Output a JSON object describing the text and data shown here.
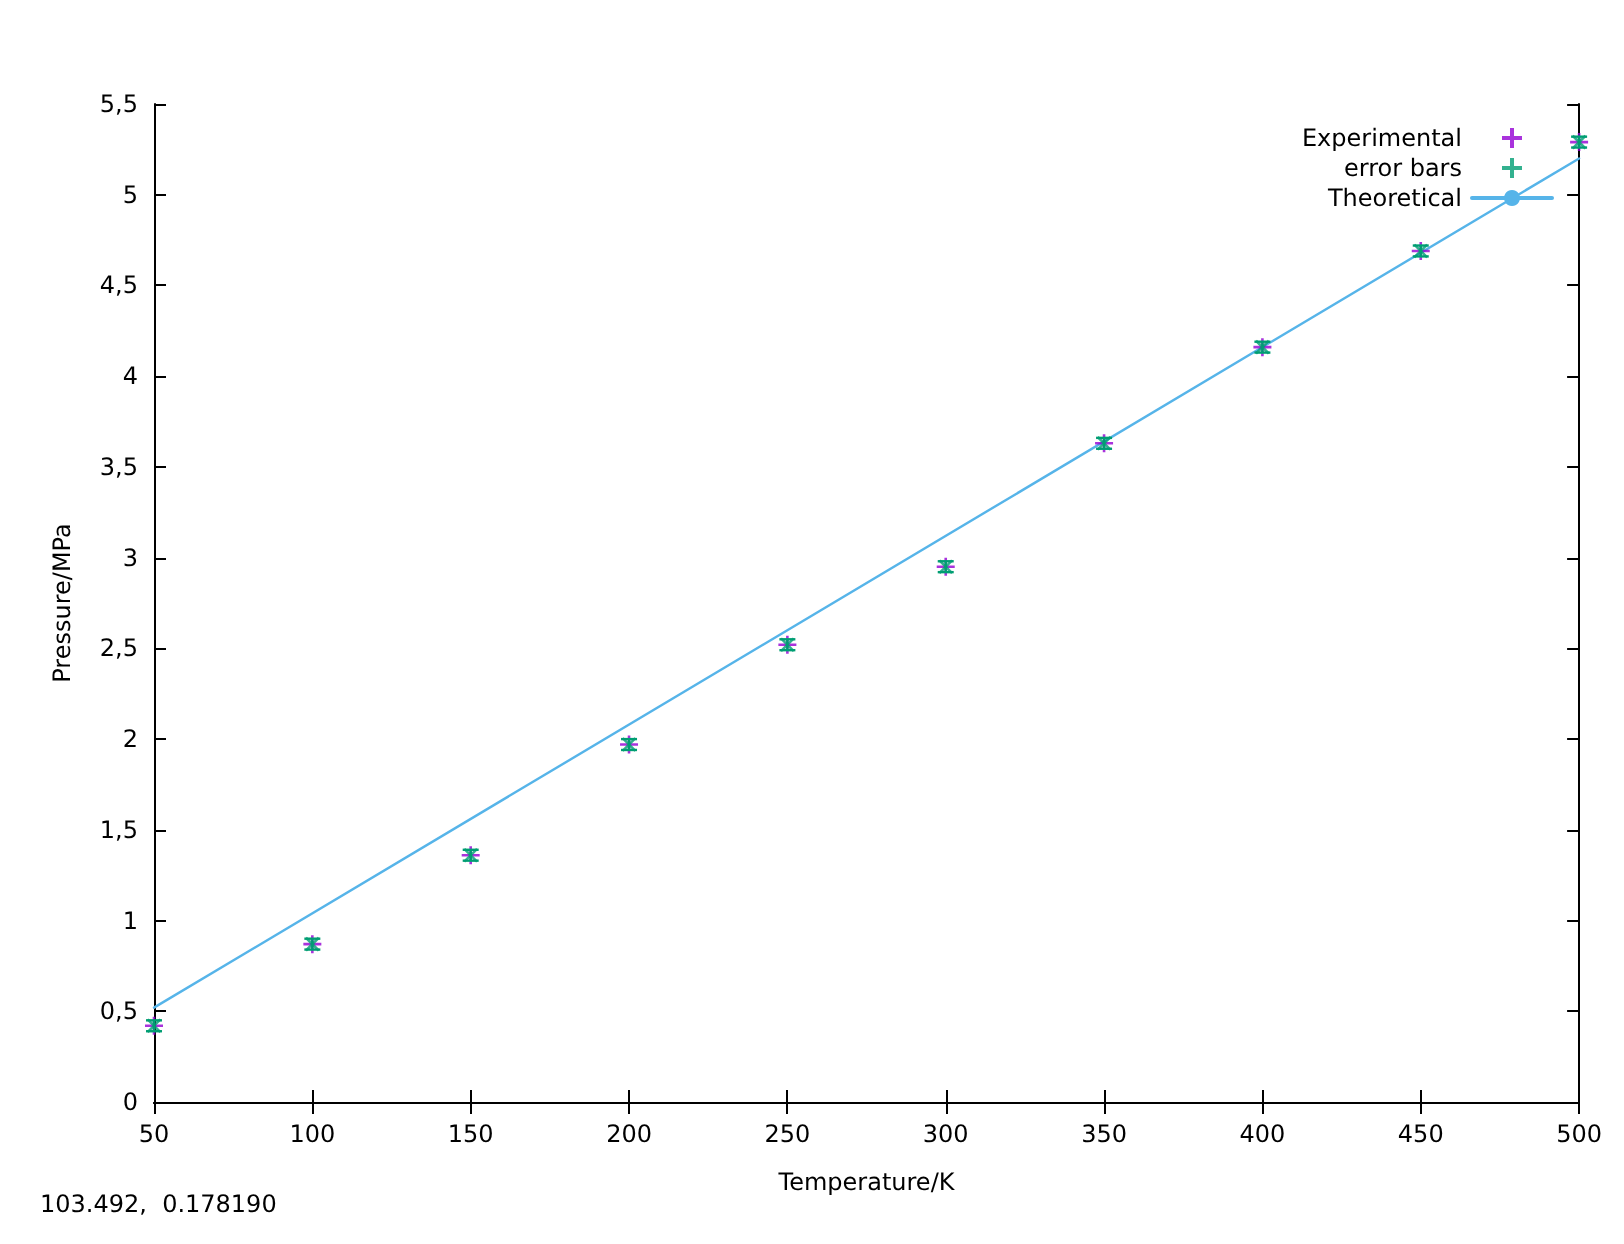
{
  "chart_data": {
    "type": "scatter",
    "xlabel": "Temperature/K",
    "ylabel": "Pressure/MPa",
    "x": [
      50,
      100,
      150,
      200,
      250,
      300,
      350,
      400,
      450,
      500
    ],
    "series": [
      {
        "name": "Experimental",
        "color": "#9400d3",
        "marker": "cross",
        "values": [
          0.42,
          0.87,
          1.36,
          1.97,
          2.52,
          2.95,
          3.63,
          4.16,
          4.69,
          5.29
        ]
      },
      {
        "name": "error bars",
        "color": "#009e73",
        "marker": "cross",
        "values": [
          0.42,
          0.87,
          1.36,
          1.97,
          2.52,
          2.95,
          3.63,
          4.16,
          4.69,
          5.29
        ],
        "errors": [
          0.03,
          0.03,
          0.03,
          0.03,
          0.03,
          0.03,
          0.03,
          0.03,
          0.03,
          0.03
        ]
      },
      {
        "name": "Theoretical",
        "type": "line",
        "color": "#56b4e9",
        "marker": "none",
        "line_style": "solid",
        "x": [
          50,
          500
        ],
        "values": [
          0.52,
          5.2
        ]
      }
    ],
    "xlim": [
      50,
      500
    ],
    "xticks": [
      50,
      100,
      150,
      200,
      250,
      300,
      350,
      400,
      450,
      500
    ],
    "ylim": [
      0,
      5.5
    ],
    "yticks": [
      0,
      {
        "value": 0.5,
        "label": "0,5"
      },
      1,
      {
        "value": 1.5,
        "label": "1,5"
      },
      2,
      {
        "value": 2.5,
        "label": "2,5"
      },
      3,
      {
        "value": 3.5,
        "label": "3,5"
      },
      4,
      {
        "value": 4.5,
        "label": "4,5"
      },
      5,
      {
        "value": 5.5,
        "label": "5,5"
      }
    ],
    "grid": false,
    "legend": "top right",
    "annotations": [
      "103.492,  0.178190"
    ]
  }
}
